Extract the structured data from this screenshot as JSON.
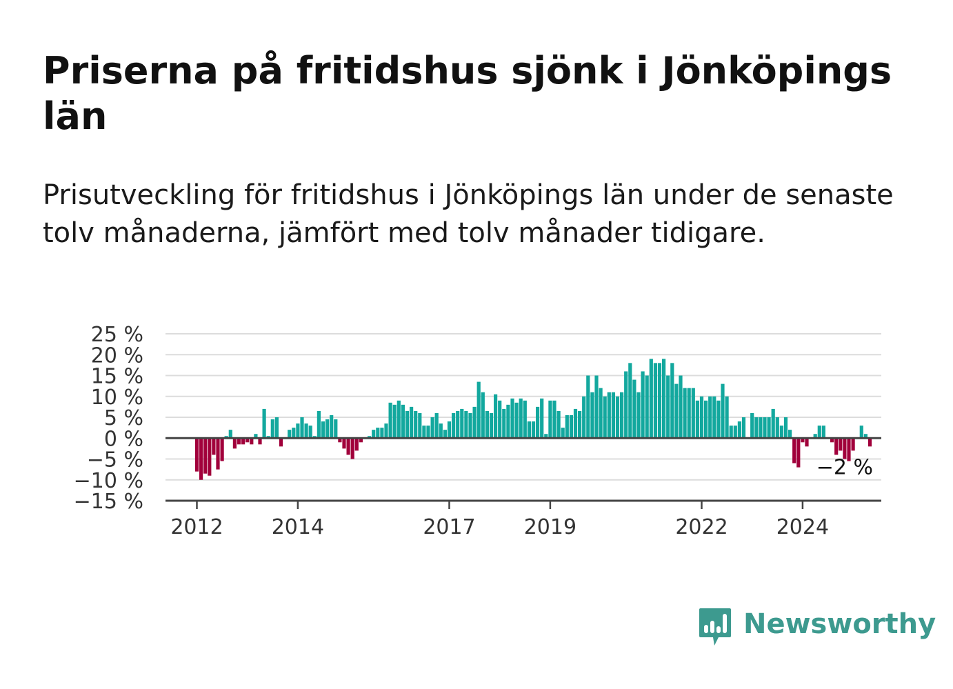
{
  "header": {
    "title": "Priserna på fritidshus sjönk i Jönköpings län",
    "subtitle": "Prisutveckling för fritidshus i Jönköpings län under de senaste tolv månaderna, jämfört med tolv månader tidigare."
  },
  "brand": {
    "name": "Newsworthy",
    "icon": "newsworthy-logo-icon",
    "color": "#3d9a8f"
  },
  "chart_data": {
    "type": "bar",
    "x_start": "2012-01",
    "x_unit": "month",
    "ylim": [
      -15,
      25
    ],
    "yticks": [
      25,
      20,
      15,
      10,
      5,
      0,
      -5,
      -10,
      -15
    ],
    "ytick_labels": [
      "25 %",
      "20 %",
      "15 %",
      "10 %",
      "5 %",
      "0 %",
      "−5 %",
      "−10 %",
      "−15 %"
    ],
    "xticks": [
      "2012",
      "2014",
      "2017",
      "2019",
      "2022",
      "2024"
    ],
    "grid": true,
    "legend": "none",
    "colors": {
      "positive": "#13a89e",
      "negative": "#a1003b",
      "grid": "#dcdcdc",
      "zero_line": "#444444"
    },
    "annotation": {
      "text": "−2 %",
      "value": -2
    },
    "values": [
      -8,
      -10,
      -8.5,
      -9,
      -4,
      -7.5,
      -5.5,
      0.5,
      2,
      -2.5,
      -1.5,
      -1.5,
      -1,
      -1.5,
      1,
      -1.5,
      7,
      0.5,
      4.5,
      5,
      -2,
      0,
      2,
      2.5,
      3.5,
      5,
      3.5,
      3,
      0.5,
      6.5,
      4,
      4.5,
      5.5,
      4.5,
      -1,
      -2.5,
      -4,
      -5,
      -3,
      -1,
      0,
      0.5,
      2,
      2.5,
      2.5,
      3.5,
      8.5,
      8,
      9,
      8,
      6.5,
      7.5,
      6.5,
      6,
      3,
      3,
      5,
      6,
      3.5,
      2,
      4,
      6,
      6.5,
      7,
      6.5,
      6,
      7.5,
      13.5,
      11,
      6.5,
      6,
      10.5,
      9,
      7,
      8,
      9.5,
      8.5,
      9.5,
      9,
      4,
      4,
      7.5,
      9.5,
      1,
      9,
      9,
      6.5,
      2.5,
      5.5,
      5.5,
      7,
      6.5,
      10,
      15,
      11,
      15,
      12,
      10,
      11,
      11,
      10,
      11,
      16,
      18,
      14,
      11,
      16,
      15,
      19,
      18,
      18,
      19,
      15,
      18,
      13,
      15,
      12,
      12,
      12,
      9,
      10,
      9,
      10,
      10,
      9,
      13,
      10,
      3,
      3,
      4,
      5,
      0,
      6,
      5,
      5,
      5,
      5,
      7,
      5,
      3,
      5,
      2,
      -6,
      -7,
      -1,
      -2,
      0,
      1,
      3,
      3,
      0,
      -1,
      -4,
      -3,
      -5,
      -5.5,
      -3,
      0,
      3,
      1,
      -2
    ]
  }
}
